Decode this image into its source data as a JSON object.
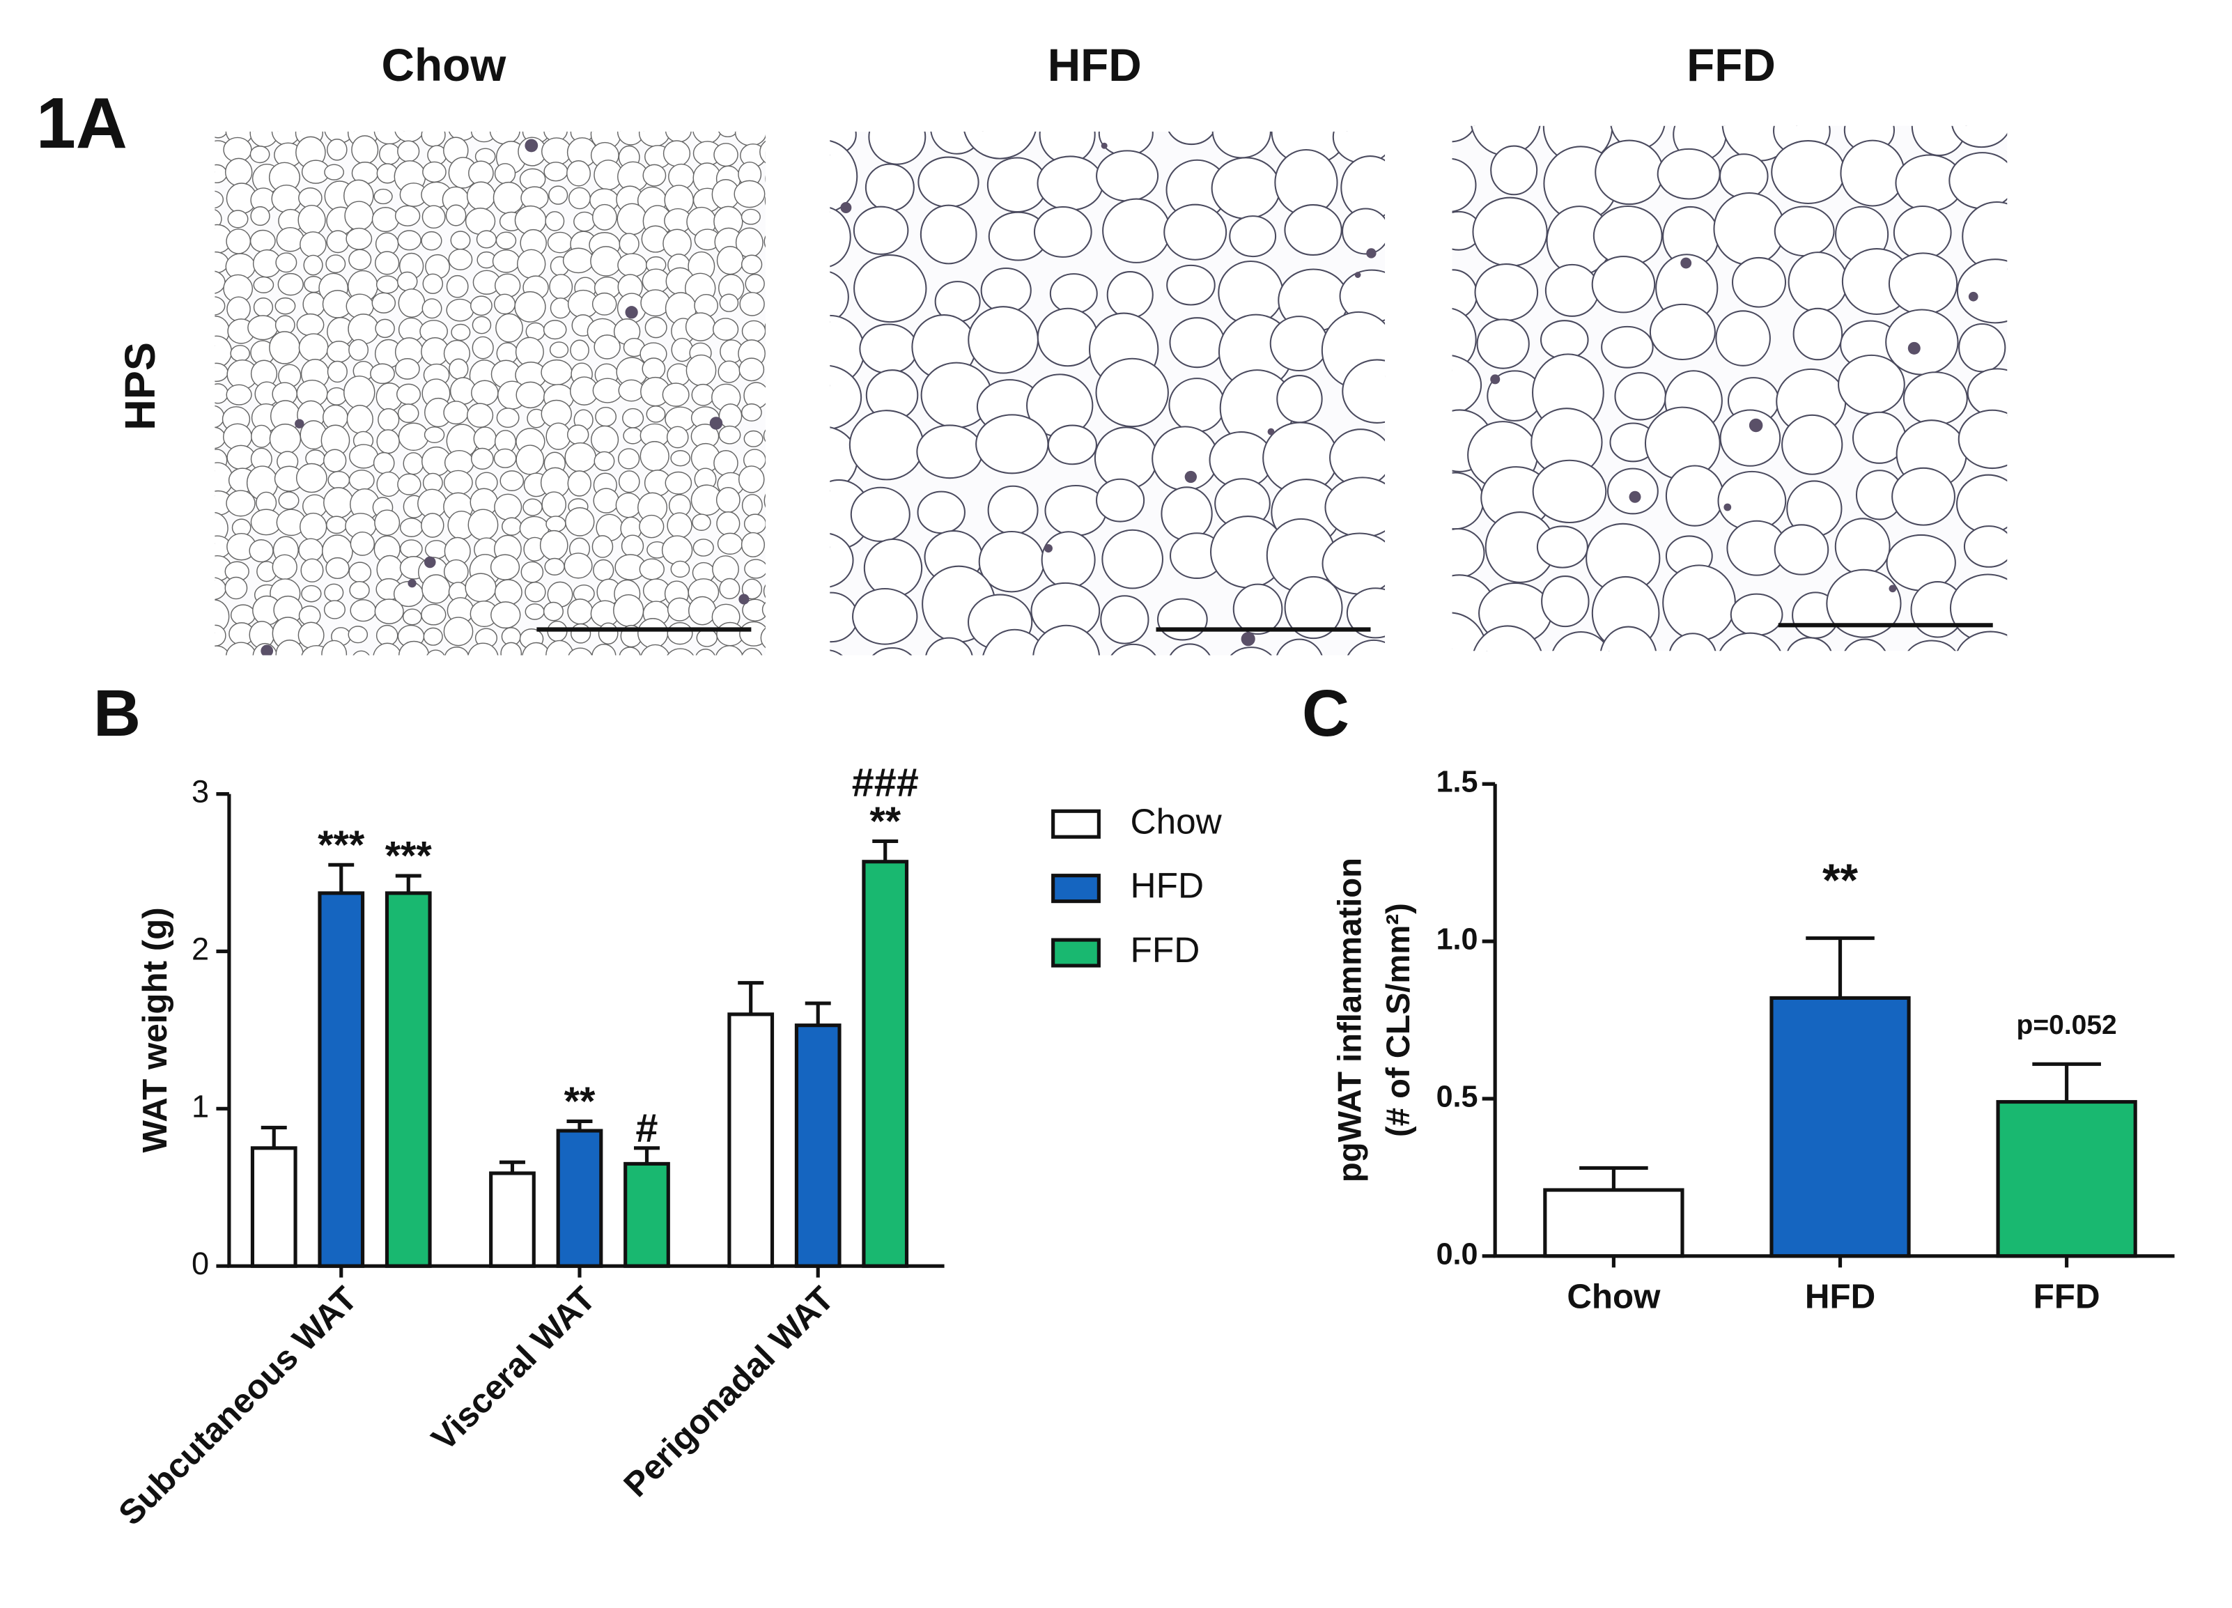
{
  "panel_a": {
    "label": "1A",
    "columns": [
      "Chow",
      "HFD",
      "FFD"
    ],
    "row_label": "HPS"
  },
  "chart_data": [
    {
      "type": "grouped-bar",
      "panel_label": "B",
      "y_label": "WAT weight (g)",
      "categories": [
        "Subcutaneous WAT",
        "Visceral WAT",
        "Perigonadal WAT"
      ],
      "ylim": [
        0,
        3
      ],
      "yticks": [
        0,
        1,
        2,
        3
      ],
      "series": [
        {
          "name": "Chow",
          "color": "#ffffff",
          "values": [
            0.75,
            0.59,
            1.6
          ],
          "errors": [
            0.13,
            0.07,
            0.2
          ],
          "significance": [
            null,
            null,
            null
          ]
        },
        {
          "name": "HFD",
          "color": "#1565c0",
          "values": [
            2.37,
            0.86,
            1.53
          ],
          "errors": [
            0.18,
            0.06,
            0.14
          ],
          "significance": [
            [
              "***"
            ],
            [
              "**"
            ],
            null
          ]
        },
        {
          "name": "FFD",
          "color": "#19b870",
          "values": [
            2.37,
            0.65,
            2.57
          ],
          "errors": [
            0.11,
            0.1,
            0.13
          ],
          "significance": [
            [
              "***"
            ],
            [
              "#"
            ],
            [
              "###",
              "**"
            ]
          ]
        }
      ]
    },
    {
      "type": "bar",
      "panel_label": "C",
      "y_label": [
        "pgWAT inflammation",
        "(# of  CLS/mm²)"
      ],
      "categories": [
        "Chow",
        "HFD",
        "FFD"
      ],
      "values": [
        0.21,
        0.82,
        0.49
      ],
      "errors": [
        0.07,
        0.19,
        0.12
      ],
      "colors": [
        "#ffffff",
        "#1565c0",
        "#19b870"
      ],
      "annotations": [
        null,
        "**",
        "p=0.052"
      ],
      "ylim": [
        0,
        1.5
      ],
      "yticks": [
        {
          "value": 0,
          "label": "0.0"
        },
        0.5,
        {
          "value": 1,
          "label": "1.0"
        },
        1.5
      ]
    }
  ]
}
